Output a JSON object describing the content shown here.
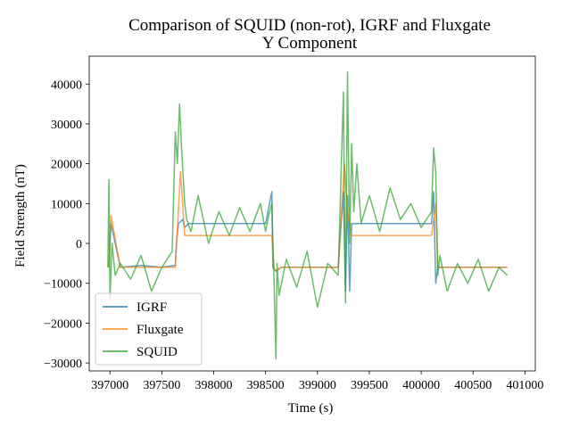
{
  "chart_data": {
    "type": "line",
    "title_line1": "Comparison of SQUID (non-rot), IGRF and Fluxgate",
    "title_line2": "Y Component",
    "xlabel": "Time (s)",
    "ylabel": "Field Strength (nT)",
    "xlim": [
      396800,
      401100
    ],
    "ylim": [
      -32000,
      47000
    ],
    "xticks": [
      397000,
      397500,
      398000,
      398500,
      399000,
      399500,
      400000,
      400500,
      401000
    ],
    "xtick_labels": [
      "397000",
      "397500",
      "398000",
      "398500",
      "399000",
      "399500",
      "400000",
      "400500",
      "401000"
    ],
    "yticks": [
      -30000,
      -20000,
      -10000,
      0,
      10000,
      20000,
      30000,
      40000
    ],
    "ytick_labels": [
      "−30000",
      "−20000",
      "−10000",
      "0",
      "10000",
      "20000",
      "30000",
      "40000"
    ],
    "grid": false,
    "legend_position": "lower-left",
    "series": [
      {
        "name": "IGRF",
        "color": "#1f77b4",
        "alpha": 0.7,
        "x": [
          396990,
          397010,
          397100,
          397300,
          397500,
          397630,
          397640,
          397660,
          397700,
          397720,
          397760,
          397900,
          398100,
          398300,
          398500,
          398560,
          398570,
          398600,
          398650,
          398800,
          399000,
          399200,
          399250,
          399270,
          399290,
          399310,
          399330,
          399500,
          399700,
          399900,
          400100,
          400120,
          400140,
          400160,
          400300,
          400500,
          400700,
          400830
        ],
        "y": [
          -6000,
          5000,
          -6000,
          -5500,
          -6000,
          -5500,
          0,
          5000,
          6000,
          4000,
          5000,
          5000,
          5000,
          5000,
          5000,
          13000,
          -6000,
          -7000,
          -6000,
          -6000,
          -6000,
          -6000,
          13000,
          -12000,
          12000,
          -12000,
          5000,
          5000,
          5000,
          5000,
          5000,
          13000,
          -10000,
          -6000,
          -6000,
          -6000,
          -6000,
          -6000
        ]
      },
      {
        "name": "Fluxgate",
        "color": "#ff7f0e",
        "alpha": 0.7,
        "x": [
          396990,
          397010,
          397100,
          397300,
          397500,
          397630,
          397680,
          397700,
          397720,
          397760,
          397900,
          398100,
          398300,
          398500,
          398560,
          398580,
          398600,
          398650,
          398800,
          399000,
          399200,
          399260,
          399280,
          399300,
          399330,
          399500,
          399700,
          399900,
          400100,
          400140,
          400160,
          400300,
          400500,
          400700,
          400830
        ],
        "y": [
          -6000,
          7000,
          -6000,
          -6000,
          -6000,
          -6000,
          18000,
          10000,
          2000,
          2000,
          2000,
          2000,
          2000,
          2000,
          2000,
          -6000,
          -7000,
          -6000,
          -6000,
          -6000,
          -6000,
          20000,
          12000,
          6000,
          2000,
          2000,
          2000,
          2000,
          2000,
          10000,
          -6000,
          -6000,
          -6000,
          -6000,
          -6000
        ]
      },
      {
        "name": "SQUID",
        "color": "#2ca02c",
        "alpha": 0.7,
        "x": [
          396980,
          396990,
          397000,
          397020,
          397050,
          397100,
          397200,
          397300,
          397400,
          397500,
          397600,
          397630,
          397650,
          397670,
          397690,
          397710,
          397720,
          397740,
          397780,
          397850,
          397950,
          398050,
          398150,
          398250,
          398350,
          398450,
          398500,
          398530,
          398560,
          398580,
          398600,
          398610,
          398630,
          398700,
          398800,
          398900,
          399000,
          399100,
          399200,
          399250,
          399270,
          399290,
          399310,
          399330,
          399350,
          399380,
          399420,
          399500,
          399600,
          399700,
          399800,
          399900,
          400000,
          400100,
          400120,
          400140,
          400160,
          400180,
          400250,
          400350,
          400450,
          400550,
          400650,
          400750,
          400830
        ],
        "y": [
          -6000,
          16000,
          -14000,
          0,
          -8000,
          -5000,
          -9000,
          -3000,
          -12000,
          -6000,
          -2000,
          28000,
          20000,
          35000,
          24000,
          15000,
          10000,
          6000,
          3000,
          12000,
          0,
          8000,
          2000,
          9000,
          3000,
          10000,
          3000,
          7000,
          10000,
          -8000,
          -29000,
          -5000,
          -13000,
          -4000,
          -11000,
          -2000,
          -16000,
          -5000,
          -8000,
          38000,
          -15000,
          43000,
          0,
          25000,
          8000,
          20000,
          5000,
          12000,
          3000,
          14000,
          6000,
          10000,
          4000,
          8000,
          24000,
          18000,
          -8000,
          -3000,
          -12000,
          -5000,
          -10000,
          -4000,
          -12000,
          -6000,
          -8000
        ]
      }
    ]
  }
}
